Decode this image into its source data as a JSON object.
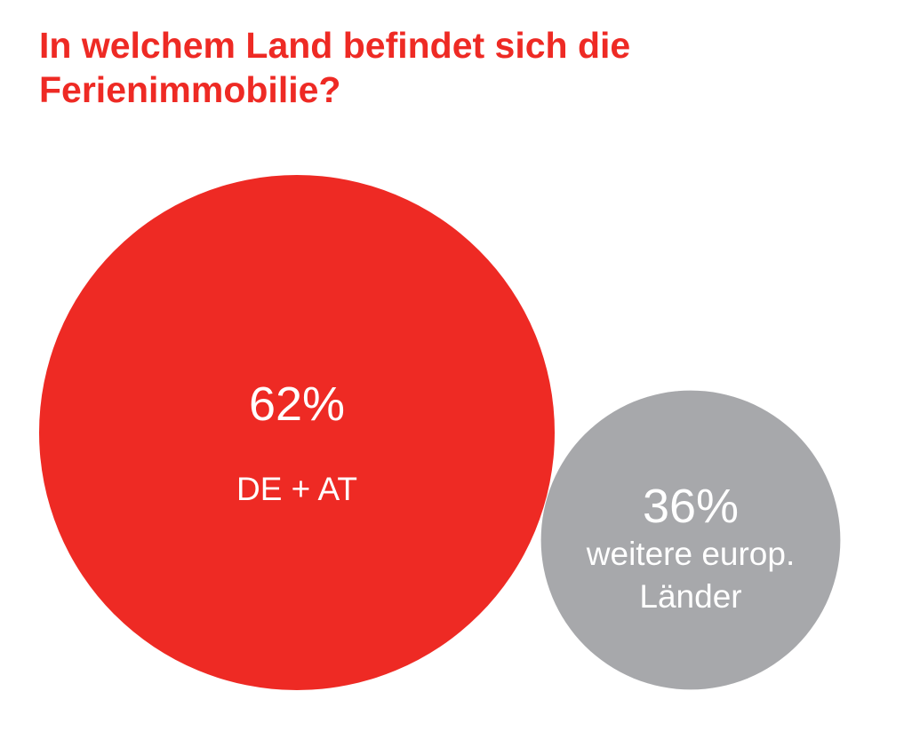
{
  "chart_data": {
    "type": "bubble",
    "title": "In welchem Land befindet sich die Ferienimmobilie?",
    "unit": "%",
    "items": [
      {
        "value": 62,
        "value_label": "62%",
        "label_lines": [
          "DE + AT"
        ],
        "color": "#ee2a24"
      },
      {
        "value": 36,
        "value_label": "36%",
        "label_lines": [
          "weitere europ.",
          "Länder"
        ],
        "color": "#a7a8ab"
      }
    ]
  }
}
